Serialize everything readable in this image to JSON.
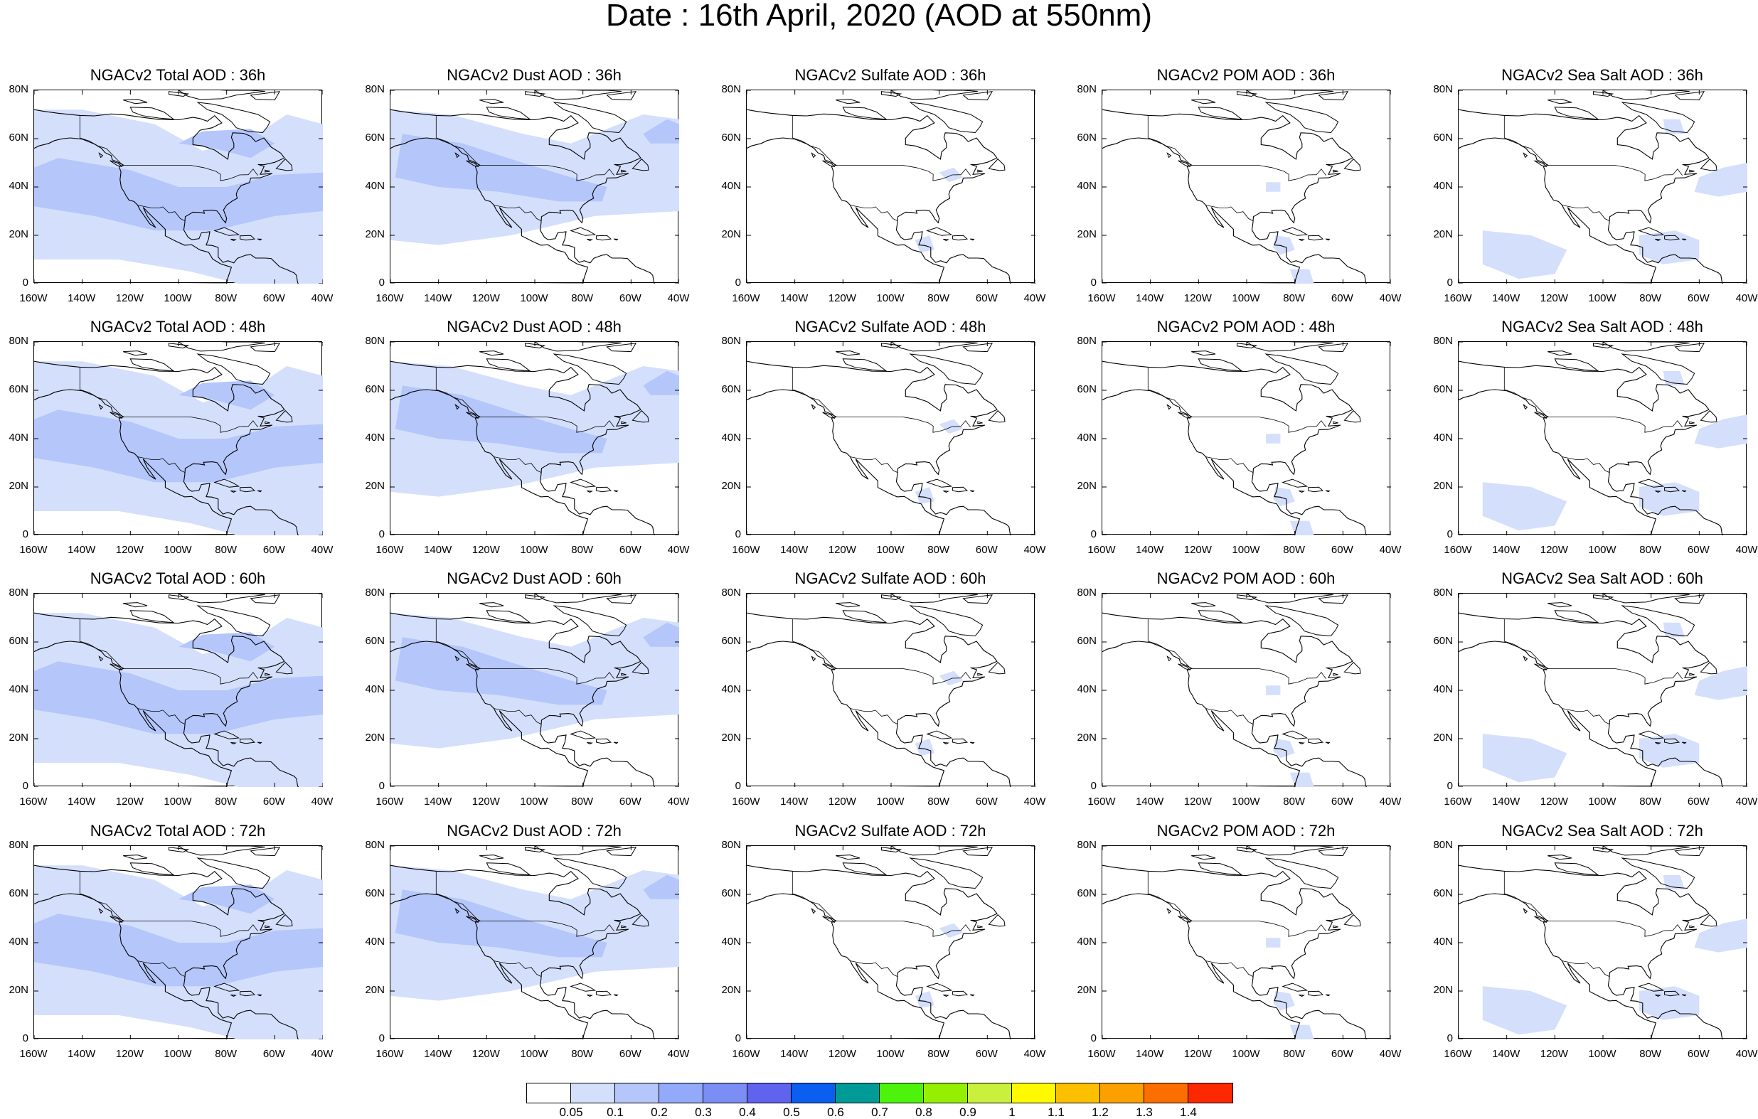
{
  "title": "Date : 16th April, 2020 (AOD at 550nm)",
  "lat_labels": [
    "80N",
    "60N",
    "40N",
    "20N",
    "0"
  ],
  "lon_labels": [
    "160W",
    "140W",
    "120W",
    "100W",
    "80W",
    "60W",
    "40W"
  ],
  "rows": [
    {
      "hour": "36h",
      "titles": [
        "NGACv2 Total AOD : 36h",
        "NGACv2 Dust AOD : 36h",
        "NGACv2 Sulfate AOD : 36h",
        "NGACv2 POM AOD : 36h",
        "NGACv2 Sea Salt AOD : 36h"
      ]
    },
    {
      "hour": "48h",
      "titles": [
        "NGACv2 Total AOD : 48h",
        "NGACv2 Dust AOD : 48h",
        "NGACv2 Sulfate AOD : 48h",
        "NGACv2 POM AOD : 48h",
        "NGACv2 Sea Salt AOD : 48h"
      ]
    },
    {
      "hour": "60h",
      "titles": [
        "NGACv2 Total AOD : 60h",
        "NGACv2 Dust AOD : 60h",
        "NGACv2 Sulfate AOD : 60h",
        "NGACv2 POM AOD : 60h",
        "NGACv2 Sea Salt AOD : 60h"
      ]
    },
    {
      "hour": "72h",
      "titles": [
        "NGACv2 Total AOD : 72h",
        "NGACv2 Dust AOD : 72h",
        "NGACv2 Sulfate AOD : 72h",
        "NGACv2 POM AOD : 72h",
        "NGACv2 Sea Salt  AOD : 72h"
      ]
    }
  ],
  "colorbar": {
    "labels": [
      "0.05",
      "0.1",
      "0.2",
      "0.3",
      "0.4",
      "0.5",
      "0.6",
      "0.7",
      "0.8",
      "0.9",
      "1",
      "1.1",
      "1.2",
      "1.3",
      "1.4"
    ],
    "colors": [
      "#ffffff",
      "#d4dffc",
      "#b4c6fa",
      "#93aafa",
      "#7b8ef5",
      "#5f63ee",
      "#0a5ef0",
      "#009b96",
      "#4df30a",
      "#94f000",
      "#c8f03c",
      "#fffa00",
      "#fcc000",
      "#fca000",
      "#fc6e00",
      "#fc2800"
    ]
  },
  "colors": {
    "aod_low": "#d4dffc",
    "aod_mid": "#b4c6fa",
    "coast": "#000000"
  }
}
